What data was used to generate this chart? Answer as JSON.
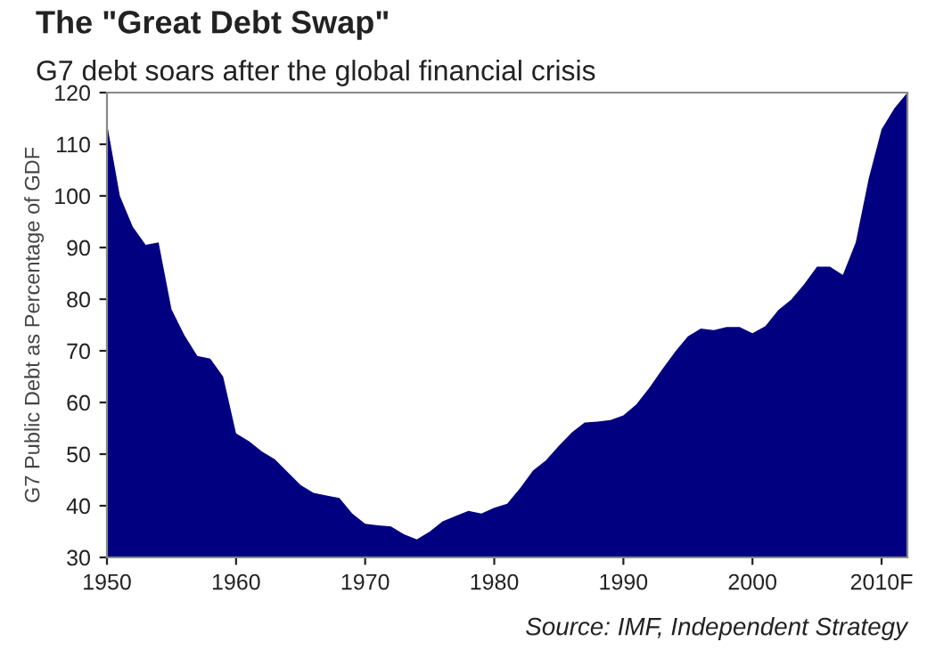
{
  "chart_data": {
    "type": "area",
    "title": "The \"Great Debt Swap\"",
    "subtitle": "G7 debt soars after the global financial crisis",
    "ylabel": "G7 Public Debt as Percentage of GDF",
    "x": [
      1950,
      1951,
      1952,
      1953,
      1954,
      1955,
      1956,
      1957,
      1958,
      1959,
      1960,
      1961,
      1962,
      1963,
      1964,
      1965,
      1966,
      1967,
      1968,
      1969,
      1970,
      1971,
      1972,
      1973,
      1974,
      1975,
      1976,
      1977,
      1978,
      1979,
      1980,
      1981,
      1982,
      1983,
      1984,
      1985,
      1986,
      1987,
      1988,
      1989,
      1990,
      1991,
      1992,
      1993,
      1994,
      1995,
      1996,
      1997,
      1998,
      1999,
      2000,
      2001,
      2002,
      2003,
      2004,
      2005,
      2006,
      2007,
      2008,
      2009,
      2010,
      2011,
      2012
    ],
    "series": [
      {
        "color": "#000080",
        "values": [
          114,
          100,
          94,
          90.5,
          91,
          78,
          73,
          69,
          68.5,
          65,
          54,
          52.5,
          50.5,
          49,
          46.5,
          44,
          42.5,
          42,
          41.5,
          38.5,
          36.5,
          36.2,
          36,
          34.5,
          33.5,
          35,
          37,
          38,
          39,
          38.5,
          39.6,
          40.4,
          43.4,
          46.8,
          48.8,
          51.6,
          54.2,
          56.1,
          56.3,
          56.6,
          57.5,
          59.6,
          62.8,
          66.4,
          69.8,
          72.8,
          74.3,
          74,
          74.6,
          74.6,
          73.4,
          74.8,
          77.9,
          79.9,
          82.9,
          86.3,
          86.3,
          84.7,
          91,
          103.3,
          112.9,
          117,
          120
        ]
      }
    ],
    "xlim": [
      1950,
      2012
    ],
    "xticks": [
      1950,
      1960,
      1970,
      1980,
      1990,
      2000,
      {
        "value": 2010,
        "label": "2010F"
      }
    ],
    "ylim": [
      30,
      120
    ],
    "yticks": [
      30,
      40,
      50,
      60,
      70,
      80,
      90,
      100,
      110,
      120
    ],
    "grid": false,
    "legend": false,
    "annotations": [
      "Source: IMF, Independent Strategy"
    ]
  }
}
